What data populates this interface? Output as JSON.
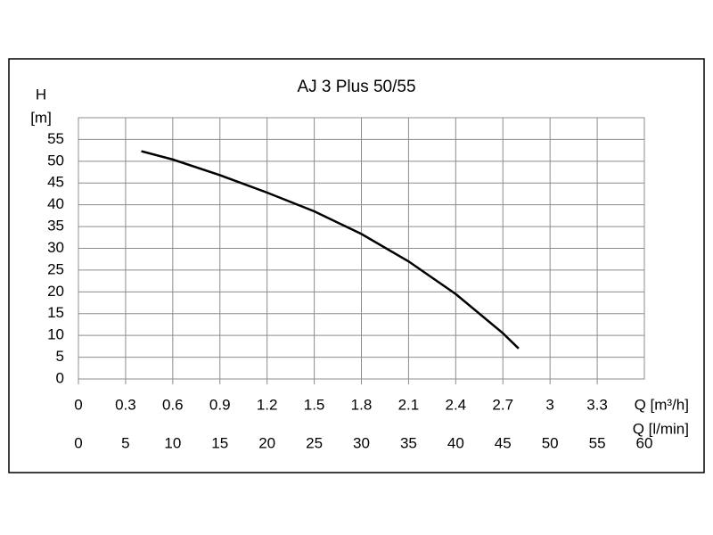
{
  "chart_data": {
    "type": "line",
    "title": "AJ 3 Plus 50/55",
    "y_label": "H",
    "y_unit": "[m]",
    "x_label": "Q [m³/h]",
    "x2_label": "Q [l/min]",
    "x": [
      0.4,
      0.6,
      0.9,
      1.2,
      1.5,
      1.8,
      2.1,
      2.4,
      2.7,
      2.8
    ],
    "values": [
      52.3,
      50.4,
      46.8,
      42.8,
      38.5,
      33.3,
      27,
      19.5,
      10.5,
      7
    ],
    "color": "#000000",
    "xlim": [
      0,
      3.6
    ],
    "xticks": [
      0,
      0.3,
      0.6,
      0.9,
      1.2,
      1.5,
      1.8,
      2.1,
      2.4,
      2.7,
      3,
      3.3
    ],
    "x2lim": [
      0,
      60
    ],
    "x2ticks": [
      0,
      5,
      10,
      15,
      20,
      25,
      30,
      35,
      40,
      45,
      50,
      55,
      60
    ],
    "ylim": [
      0,
      60
    ],
    "yticks": [
      0,
      5,
      10,
      15,
      20,
      25,
      30,
      35,
      40,
      45,
      50,
      55
    ],
    "grid": true
  }
}
